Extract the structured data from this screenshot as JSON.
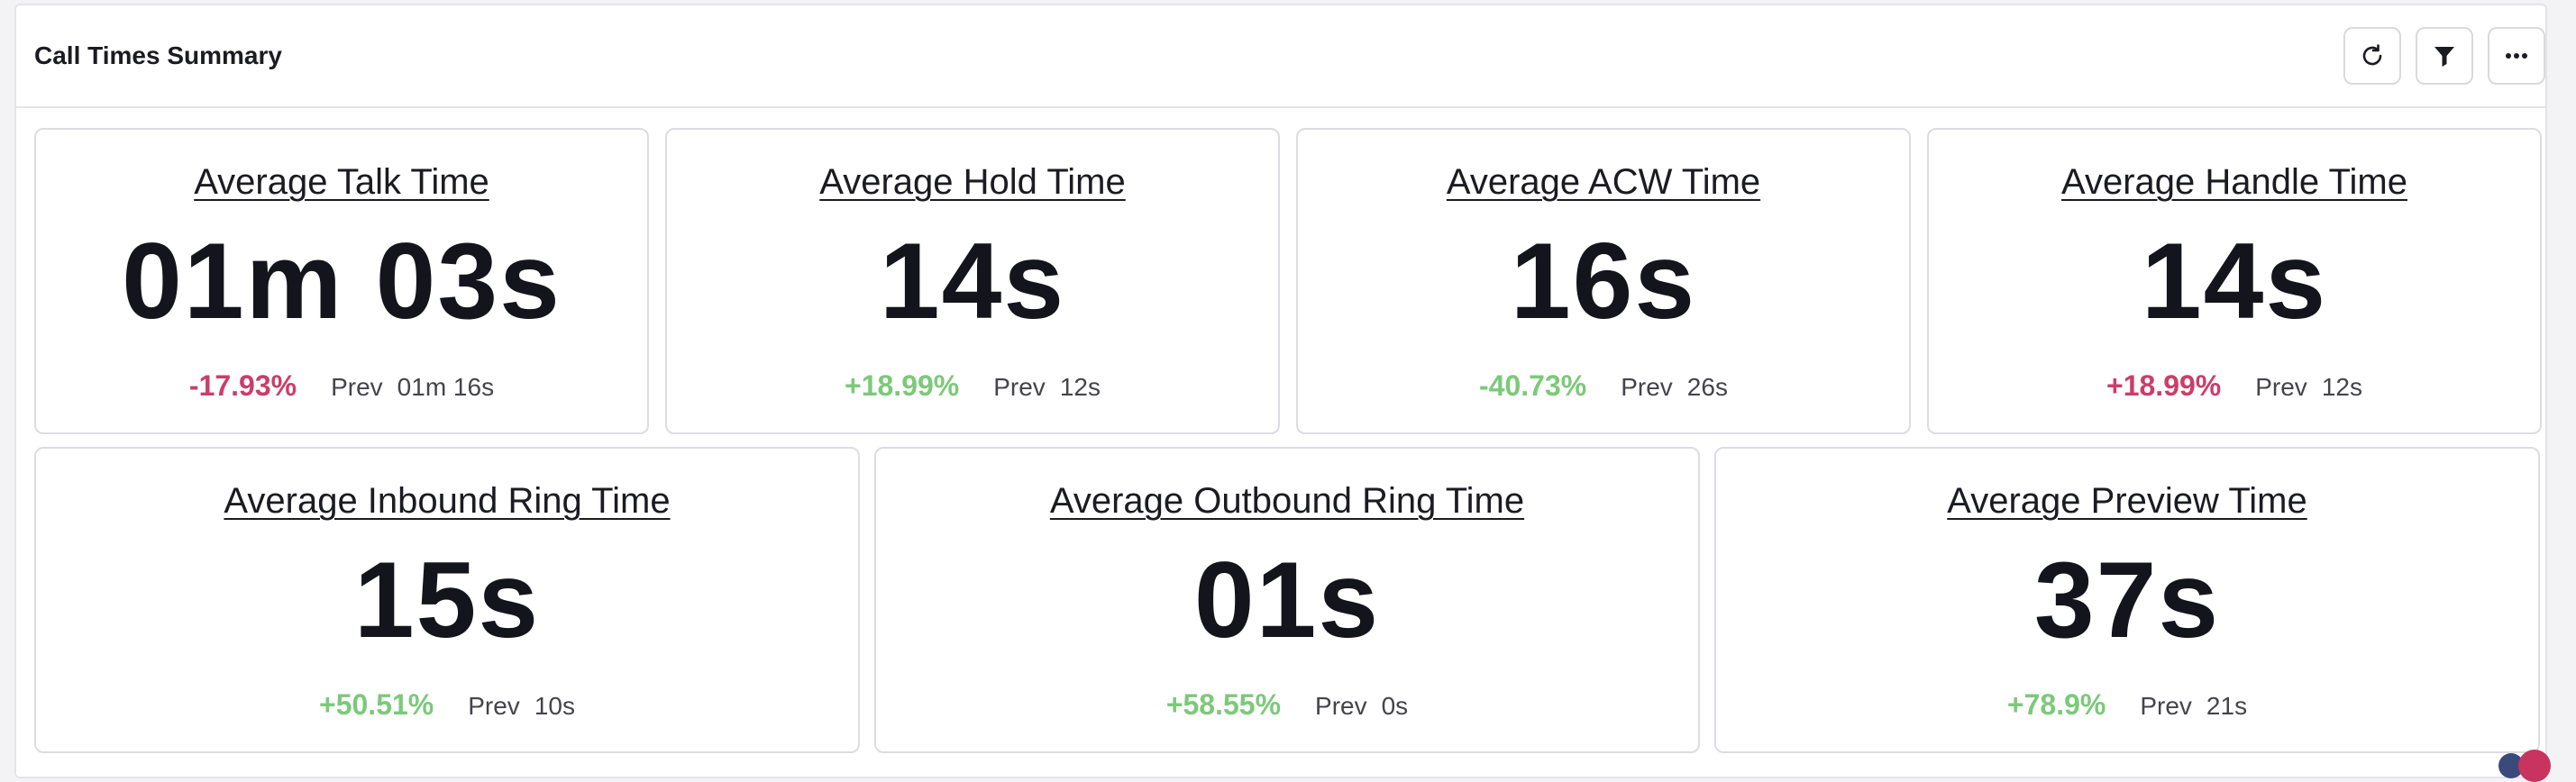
{
  "panel": {
    "title": "Call Times Summary",
    "toolbar": [
      "refresh-icon",
      "filter-icon",
      "more-icon"
    ]
  },
  "colors": {
    "negative": "#cc3d6a",
    "positive": "#7cc97a"
  },
  "metrics": [
    {
      "title": "Average Talk Time",
      "value": "01m 03s",
      "change": "-17.93%",
      "change_color": "negative",
      "prev_label": "Prev",
      "prev_value": "01m 16s"
    },
    {
      "title": "Average Hold Time",
      "value": "14s",
      "change": "+18.99%",
      "change_color": "positive",
      "prev_label": "Prev",
      "prev_value": "12s"
    },
    {
      "title": "Average ACW Time",
      "value": "16s",
      "change": "-40.73%",
      "change_color": "positive",
      "prev_label": "Prev",
      "prev_value": "26s"
    },
    {
      "title": "Average Handle Time",
      "value": "14s",
      "change": "+18.99%",
      "change_color": "negative",
      "prev_label": "Prev",
      "prev_value": "12s"
    },
    {
      "title": "Average Inbound Ring Time",
      "value": "15s",
      "change": "+50.51%",
      "change_color": "positive",
      "prev_label": "Prev",
      "prev_value": "10s"
    },
    {
      "title": "Average Outbound Ring Time",
      "value": "01s",
      "change": "+58.55%",
      "change_color": "positive",
      "prev_label": "Prev",
      "prev_value": "0s"
    },
    {
      "title": "Average Preview Time",
      "value": "37s",
      "change": "+78.9%",
      "change_color": "positive",
      "prev_label": "Prev",
      "prev_value": "21s"
    }
  ]
}
